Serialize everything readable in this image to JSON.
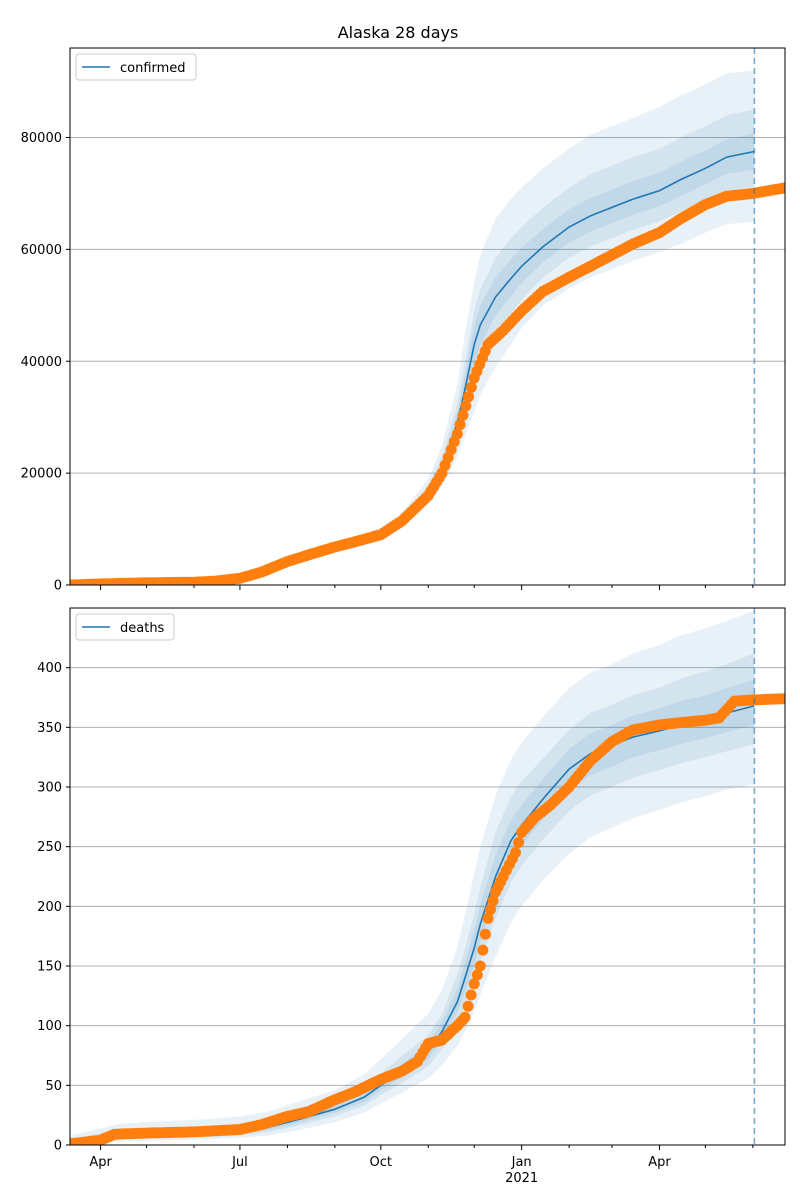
{
  "title": "Alaska 28 days",
  "colors": {
    "line": "#1f77b4",
    "band": "#1f77b4",
    "observed": "#ff7f0e",
    "grid": "#b0b0b0",
    "vline": "#1f77b4"
  },
  "x_axis": {
    "start": "2020-03-12",
    "end": "2021-06-22",
    "tick_labels": [
      {
        "date": "2020-04-01",
        "label": "Apr"
      },
      {
        "date": "2020-07-01",
        "label": "Jul"
      },
      {
        "date": "2020-10-01",
        "label": "Oct"
      },
      {
        "date": "2021-01-01",
        "label": "Jan",
        "sublabel": "2021"
      },
      {
        "date": "2021-04-01",
        "label": "Apr"
      }
    ],
    "minor_ticks": [
      "2020-05-01",
      "2020-06-01",
      "2020-08-01",
      "2020-09-01",
      "2020-11-01",
      "2020-12-01",
      "2021-02-01",
      "2021-03-01",
      "2021-05-01",
      "2021-06-01"
    ]
  },
  "forecast_date": "2021-06-02",
  "chart_data": [
    {
      "type": "line",
      "legend": "confirmed",
      "legend_position": "top-left",
      "grid": true,
      "ylim": [
        0,
        96000
      ],
      "yticks": [
        0,
        20000,
        40000,
        60000,
        80000
      ],
      "model": {
        "x": [
          "2020-03-12",
          "2020-04-15",
          "2020-05-15",
          "2020-06-15",
          "2020-07-01",
          "2020-07-20",
          "2020-08-10",
          "2020-09-01",
          "2020-09-20",
          "2020-10-01",
          "2020-10-15",
          "2020-11-01",
          "2020-11-10",
          "2020-11-20",
          "2020-11-25",
          "2020-12-01",
          "2020-12-05",
          "2020-12-15",
          "2020-12-25",
          "2021-01-01",
          "2021-01-15",
          "2021-02-01",
          "2021-02-15",
          "2021-03-01",
          "2021-03-15",
          "2021-04-01",
          "2021-04-15",
          "2021-05-01",
          "2021-05-15",
          "2021-06-02"
        ],
        "y": [
          100,
          250,
          400,
          600,
          1000,
          2500,
          5000,
          6800,
          8000,
          9000,
          11500,
          16500,
          21000,
          29000,
          35000,
          43000,
          46500,
          51500,
          54800,
          57000,
          60500,
          64000,
          66000,
          67500,
          69000,
          70500,
          72500,
          74500,
          76500,
          77500
        ],
        "bands": [
          {
            "lower": [
              0,
              100,
              200,
              400,
              800,
              2000,
              4200,
              5900,
              7000,
              7900,
              10200,
              14500,
              17500,
              23000,
              26500,
              31000,
              34000,
              39000,
              43000,
              46000,
              50000,
              53000,
              55000,
              56500,
              58000,
              59500,
              61000,
              63000,
              64500,
              65000
            ],
            "upper": [
              300,
              500,
              700,
              900,
              1300,
              3000,
              5800,
              7700,
              9100,
              10300,
              13000,
              19000,
              25000,
              36000,
              45000,
              54000,
              59000,
              65500,
              69000,
              71000,
              74500,
              78000,
              80500,
              82000,
              83500,
              85500,
              87500,
              89500,
              91500,
              92000
            ]
          },
          {
            "lower": [
              40,
              170,
              300,
              500,
              900,
              2250,
              4600,
              6400,
              7500,
              8400,
              10900,
              15500,
              19200,
              25500,
              30000,
              36000,
              39500,
              45000,
              48500,
              51000,
              55000,
              58500,
              60500,
              62000,
              63500,
              65000,
              66800,
              68800,
              70500,
              71200
            ],
            "upper": [
              200,
              380,
              550,
              750,
              1150,
              2750,
              5400,
              7250,
              8600,
              9700,
              12250,
              17800,
              23000,
              32500,
              40000,
              49000,
              53000,
              58500,
              62000,
              64000,
              67500,
              71000,
              73500,
              75000,
              76500,
              78000,
              80000,
              82000,
              84000,
              85000
            ]
          },
          {
            "lower": [
              70,
              210,
              350,
              550,
              950,
              2380,
              4800,
              6600,
              7750,
              8700,
              11200,
              16000,
              20100,
              27200,
              32500,
              39500,
              43000,
              48200,
              51600,
              54000,
              57700,
              61200,
              63200,
              64700,
              66200,
              67700,
              69600,
              71600,
              73500,
              74300
            ],
            "upper": [
              150,
              300,
              470,
              680,
              1080,
              2620,
              5200,
              7000,
              8300,
              9350,
              11850,
              17100,
              22000,
              30800,
              37500,
              46500,
              50000,
              55000,
              58200,
              60300,
              63700,
              67200,
              69200,
              70700,
              72200,
              73700,
              75700,
              77700,
              79700,
              80700
            ]
          }
        ]
      },
      "observed": {
        "x": [
          "2020-03-12",
          "2020-04-01",
          "2020-05-01",
          "2020-06-01",
          "2020-06-15",
          "2020-07-01",
          "2020-07-15",
          "2020-08-01",
          "2020-08-15",
          "2020-09-01",
          "2020-09-15",
          "2020-10-01",
          "2020-10-15",
          "2020-11-01",
          "2020-11-10",
          "2020-11-20",
          "2020-12-01",
          "2020-12-10",
          "2020-12-20",
          "2021-01-01",
          "2021-01-15",
          "2021-02-01",
          "2021-02-15",
          "2021-03-01",
          "2021-03-15",
          "2021-04-01",
          "2021-04-15",
          "2021-05-01",
          "2021-05-15",
          "2021-06-01",
          "2021-06-22"
        ],
        "y": [
          0,
          200,
          400,
          500,
          700,
          1200,
          2300,
          4200,
          5400,
          6800,
          7800,
          9000,
          11500,
          16000,
          20000,
          27000,
          37000,
          43000,
          45500,
          49000,
          52500,
          55000,
          57000,
          59000,
          61000,
          63000,
          65500,
          68000,
          69500,
          70000,
          71000
        ]
      }
    },
    {
      "type": "line",
      "legend": "deaths",
      "legend_position": "top-left",
      "grid": true,
      "ylim": [
        0,
        450
      ],
      "yticks": [
        0,
        50,
        100,
        150,
        200,
        250,
        300,
        350,
        400
      ],
      "model": {
        "x": [
          "2020-03-12",
          "2020-04-15",
          "2020-05-15",
          "2020-06-15",
          "2020-07-01",
          "2020-07-20",
          "2020-08-10",
          "2020-09-01",
          "2020-09-20",
          "2020-10-01",
          "2020-10-15",
          "2020-11-01",
          "2020-11-10",
          "2020-11-20",
          "2020-11-25",
          "2020-12-01",
          "2020-12-05",
          "2020-12-15",
          "2020-12-25",
          "2021-01-01",
          "2021-01-15",
          "2021-02-01",
          "2021-02-15",
          "2021-03-01",
          "2021-03-15",
          "2021-04-01",
          "2021-04-15",
          "2021-05-01",
          "2021-05-15",
          "2021-06-02"
        ],
        "y": [
          2,
          8,
          10,
          11,
          12,
          15,
          22,
          30,
          40,
          50,
          62,
          78,
          95,
          120,
          140,
          165,
          185,
          225,
          255,
          268,
          290,
          315,
          328,
          335,
          342,
          347,
          352,
          356,
          362,
          368
        ],
        "bands": [
          {
            "lower": [
              0,
              3,
              4,
              5,
              6,
              8,
              13,
              19,
              27,
              35,
              44,
              56,
              67,
              83,
              95,
              112,
              126,
              158,
              186,
              200,
              222,
              244,
              258,
              266,
              274,
              281,
              287,
              292,
              298,
              302
            ],
            "upper": [
              8,
              18,
              20,
              22,
              24,
              28,
              37,
              46,
              59,
              72,
              89,
              110,
              130,
              166,
              193,
              227,
              250,
              293,
              323,
              337,
              359,
              383,
              396,
              403,
              412,
              419,
              427,
              433,
              439,
              448
            ]
          },
          {
            "lower": [
              1,
              5,
              6,
              7,
              8,
              11,
              17,
              24,
              33,
              42,
              52,
              66,
              80,
              100,
              116,
              137,
              154,
              190,
              220,
              234,
              256,
              280,
              293,
              300,
              308,
              314,
              320,
              325,
              330,
              336
            ],
            "upper": [
              5,
              13,
              15,
              16,
              17,
              21,
              28,
              37,
              48,
              60,
              75,
              92,
              110,
              143,
              165,
              194,
              216,
              262,
              292,
              305,
              324,
              348,
              362,
              369,
              377,
              383,
              391,
              397,
              403,
              412
            ]
          },
          {
            "lower": [
              1,
              6,
              8,
              9,
              10,
              13,
              19,
              27,
              36,
              46,
              57,
              72,
              88,
              111,
              128,
              151,
              170,
              208,
              238,
              251,
              273,
              297,
              310,
              317,
              325,
              331,
              336,
              341,
              346,
              352
            ],
            "upper": [
              3,
              10,
              12,
              13,
              15,
              18,
              25,
              33,
              44,
              55,
              68,
              85,
              103,
              131,
              153,
              180,
              201,
              243,
              272,
              285,
              307,
              332,
              345,
              352,
              360,
              366,
              372,
              377,
              383,
              390
            ]
          }
        ]
      },
      "observed": {
        "x": [
          "2020-03-12",
          "2020-04-01",
          "2020-04-10",
          "2020-05-01",
          "2020-06-01",
          "2020-07-01",
          "2020-07-15",
          "2020-08-01",
          "2020-08-15",
          "2020-09-01",
          "2020-09-15",
          "2020-10-01",
          "2020-10-15",
          "2020-10-25",
          "2020-11-01",
          "2020-11-10",
          "2020-11-20",
          "2020-11-25",
          "2020-12-01",
          "2020-12-05",
          "2020-12-10",
          "2020-12-15",
          "2020-12-20",
          "2020-12-28",
          "2021-01-01",
          "2021-01-10",
          "2021-01-20",
          "2021-02-01",
          "2021-02-15",
          "2021-03-01",
          "2021-03-15",
          "2021-04-01",
          "2021-04-15",
          "2021-05-01",
          "2021-05-10",
          "2021-05-20",
          "2021-06-01",
          "2021-06-22"
        ],
        "y": [
          1,
          4,
          9,
          10,
          11,
          13,
          17,
          24,
          28,
          38,
          45,
          55,
          62,
          70,
          85,
          88,
          100,
          107,
          135,
          150,
          190,
          212,
          225,
          245,
          262,
          275,
          285,
          300,
          322,
          338,
          348,
          352,
          354,
          356,
          358,
          372,
          373,
          374
        ]
      }
    }
  ]
}
